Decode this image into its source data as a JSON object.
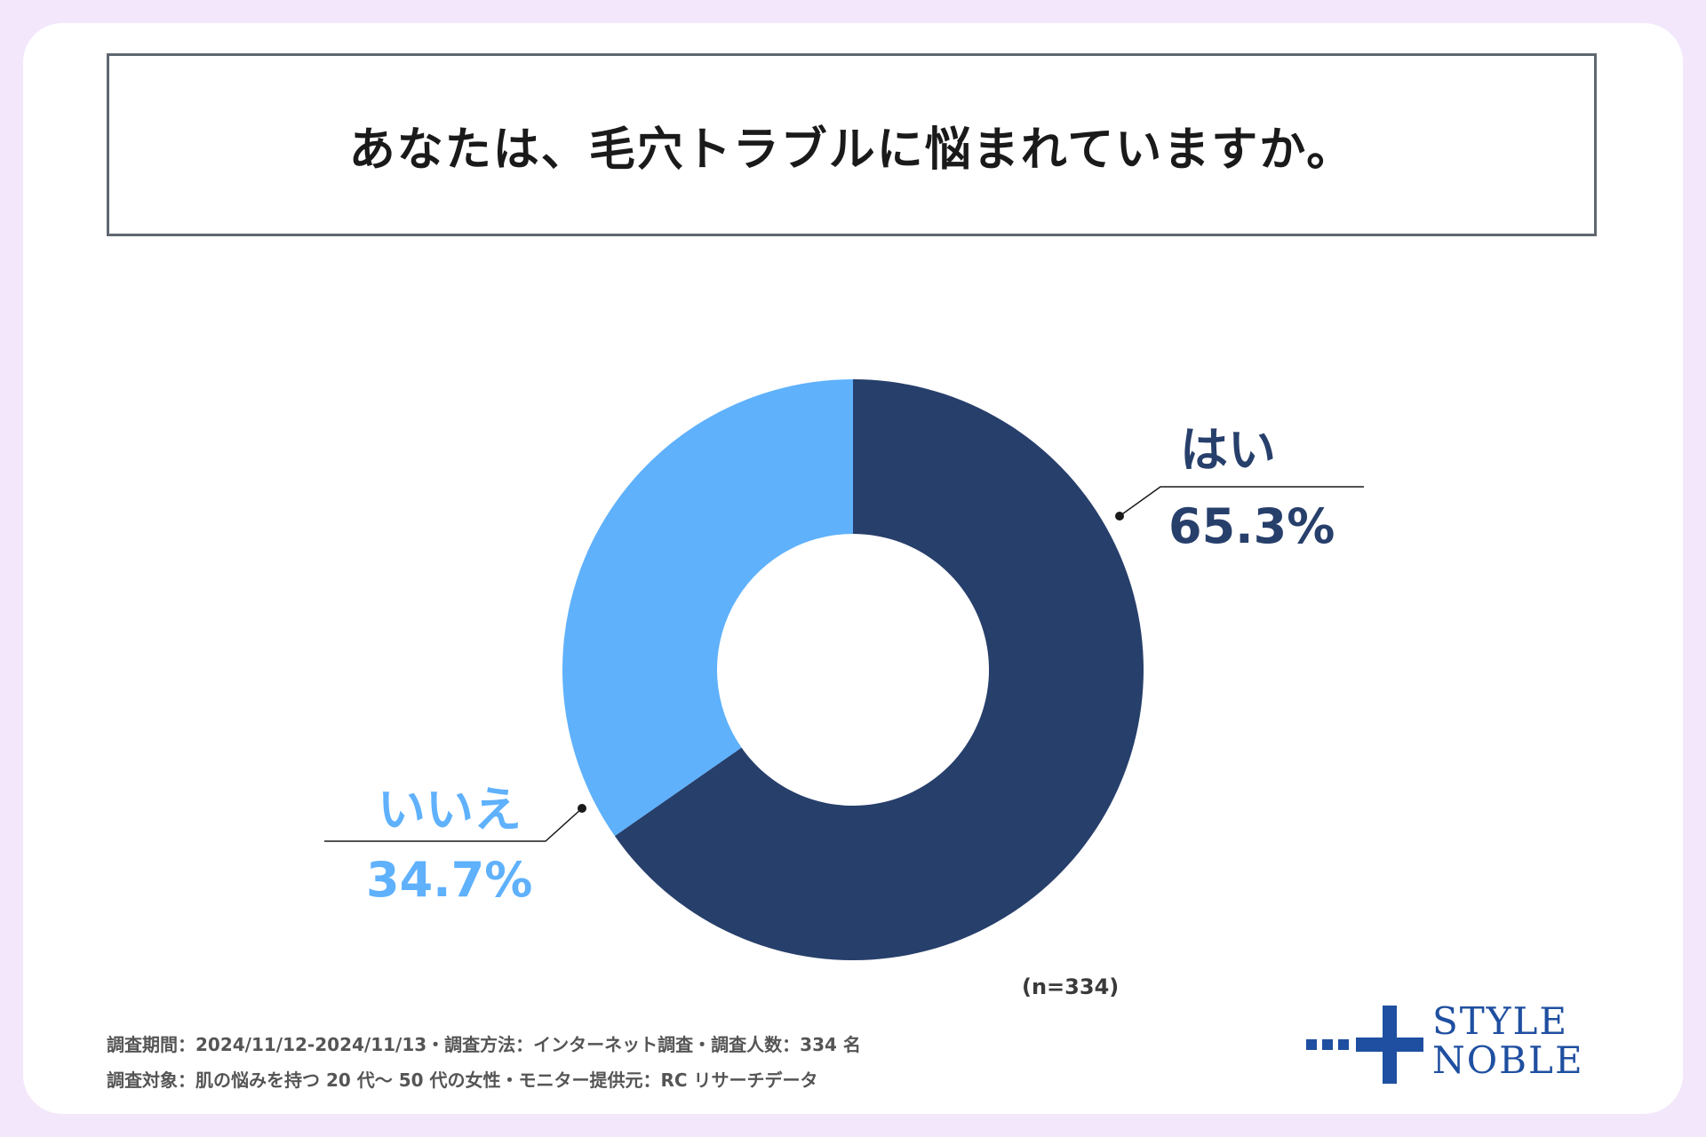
{
  "title": "あなたは、毛穴トラブルに悩まれていますか。",
  "chart_data": {
    "type": "pie",
    "title": "あなたは、毛穴トラブルに悩まれていますか。",
    "categories": [
      "はい",
      "いいえ"
    ],
    "values": [
      65.3,
      34.7
    ],
    "value_labels": [
      "65.3%",
      "34.7%"
    ],
    "colors": [
      "#273f6b",
      "#5fb1fc"
    ],
    "donut": true,
    "n_label": "(n=334)"
  },
  "labels": {
    "yes_name": "はい",
    "yes_value": "65.3%",
    "no_name": "いいえ",
    "no_value": "34.7%"
  },
  "footnotes": {
    "line1": "調査期間：2024/11/12-2024/11/13・調査方法：インターネット調査・調査人数：334 名",
    "line2": "調査対象：肌の悩みを持つ 20 代〜 50 代の女性・モニター提供元：RC リサーチデータ"
  },
  "logo": {
    "line1": "STYLE",
    "line2": "NOBLE",
    "color": "#1f4fa0"
  }
}
